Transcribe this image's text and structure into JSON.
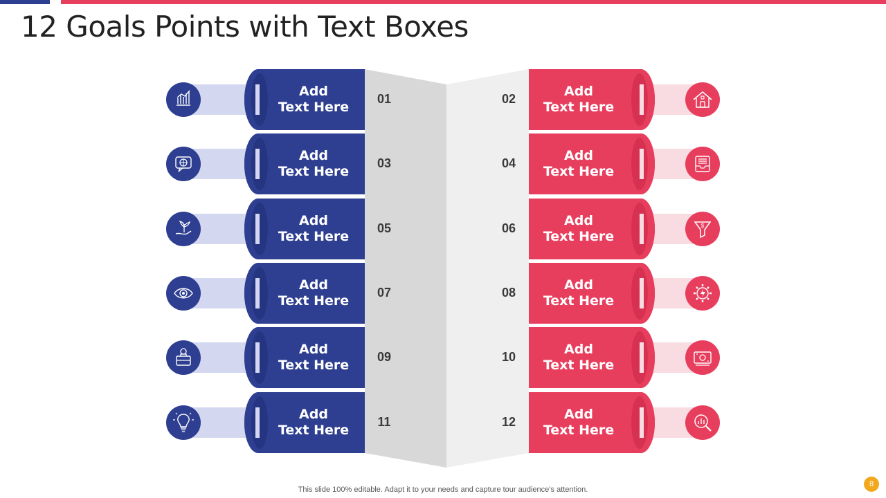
{
  "title": "12 Goals Points with Text Boxes",
  "footer": "This slide 100% editable. Adapt it to your needs and capture tour audience’s attention.",
  "page_number": "8",
  "colors": {
    "blue": "#2E3F91",
    "red": "#E83E5E",
    "blue_tube": "#D3D8F0",
    "red_tube": "#F9DCE2",
    "accent": "#F2A81D"
  },
  "left_items": [
    {
      "number": "01",
      "text": "Add\nText Here",
      "icon": "bar-chart-icon"
    },
    {
      "number": "03",
      "text": "Add\nText Here",
      "icon": "globe-chat-icon"
    },
    {
      "number": "05",
      "text": "Add\nText Here",
      "icon": "plant-hand-icon"
    },
    {
      "number": "07",
      "text": "Add\nText Here",
      "icon": "eye-icon"
    },
    {
      "number": "09",
      "text": "Add\nText Here",
      "icon": "businessman-briefcase-icon"
    },
    {
      "number": "11",
      "text": "Add\nText Here",
      "icon": "lightbulb-icon"
    }
  ],
  "right_items": [
    {
      "number": "02",
      "text": "Add\nText Here",
      "icon": "house-icon"
    },
    {
      "number": "04",
      "text": "Add\nText Here",
      "icon": "inbox-tray-icon"
    },
    {
      "number": "06",
      "text": "Add\nText Here",
      "icon": "dollar-funnel-icon"
    },
    {
      "number": "08",
      "text": "Add\nText Here",
      "icon": "gear-lightning-icon"
    },
    {
      "number": "10",
      "text": "Add\nText Here",
      "icon": "money-bill-icon"
    },
    {
      "number": "12",
      "text": "Add\nText Here",
      "icon": "magnify-chart-icon"
    }
  ]
}
